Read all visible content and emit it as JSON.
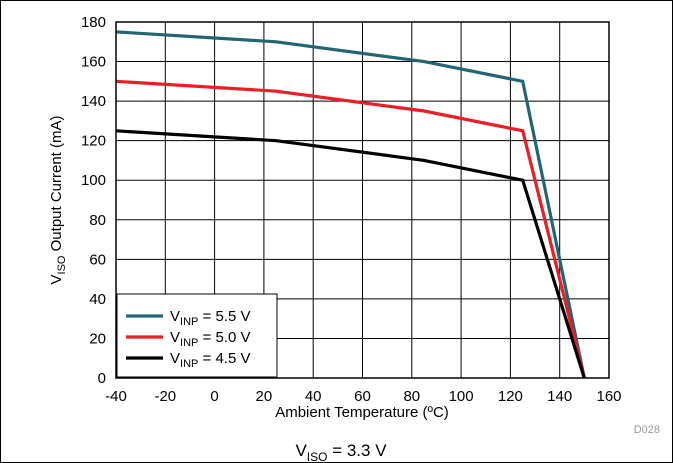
{
  "chart_data": {
    "type": "line",
    "xlabel": "Ambient Temperature (ºC)",
    "ylabel": {
      "main": "V",
      "sub": "ISO",
      "rest": " Output Current (mA)"
    },
    "xlim": [
      -40,
      160
    ],
    "ylim": [
      0,
      180
    ],
    "xticks": [
      -40,
      -20,
      0,
      20,
      40,
      60,
      80,
      100,
      120,
      140,
      160
    ],
    "yticks": [
      0,
      20,
      40,
      60,
      80,
      100,
      120,
      140,
      160,
      180
    ],
    "grid": true,
    "legend_position": "bottom-left",
    "series": [
      {
        "name": "VINP = 5.5 V",
        "label": {
          "main": "V",
          "sub": "INP",
          "rest": " = 5.5 V"
        },
        "color": "#236573",
        "x": [
          -40,
          25,
          85,
          125,
          150
        ],
        "y": [
          175,
          170,
          160,
          150,
          0
        ]
      },
      {
        "name": "VINP = 5.0 V",
        "label": {
          "main": "V",
          "sub": "INP",
          "rest": " = 5.0 V"
        },
        "color": "#ee1c24",
        "x": [
          -40,
          25,
          85,
          125,
          150
        ],
        "y": [
          150,
          145,
          135,
          125,
          0
        ]
      },
      {
        "name": "VINP = 4.5 V",
        "label": {
          "main": "V",
          "sub": "INP",
          "rest": " = 4.5 V"
        },
        "color": "#000000",
        "x": [
          -40,
          25,
          85,
          125,
          150
        ],
        "y": [
          125,
          120,
          110,
          100,
          0
        ]
      }
    ],
    "footnote": "D028",
    "caption": {
      "main": "V",
      "sub": "ISO",
      "rest": " = 3.3 V"
    }
  }
}
